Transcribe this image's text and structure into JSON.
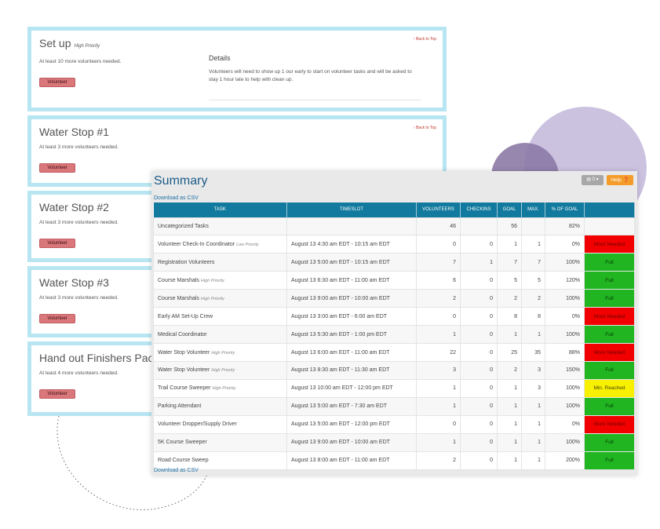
{
  "cards": [
    {
      "title": "Set up",
      "priority": "High Priority",
      "need": "At least 10 more volunteers needed.",
      "button": "Volunteer",
      "back_to_top": "↑ Back to Top",
      "details_heading": "Details",
      "details_text": "Volunteers will need to show up 1 our early to start on volunteer tasks and will be asked to stay 1 hour late to help with clean up."
    },
    {
      "title": "Water Stop #1",
      "priority": "",
      "need": "At least 3 more volunteers needed.",
      "button": "Volunteer",
      "back_to_top": "↑ Back to Top"
    },
    {
      "title": "Water Stop #2",
      "priority": "",
      "need": "At least 3 more volunteers needed.",
      "button": "Volunteer"
    },
    {
      "title": "Water Stop #3",
      "priority": "",
      "need": "At least 3 more volunteers needed.",
      "button": "Volunteer"
    },
    {
      "title": "Hand out Finishers Pack",
      "priority": "",
      "need": "At least 4 more volunteers needed.",
      "button": "Volunteer"
    }
  ],
  "summary": {
    "title": "Summary",
    "download_csv": "Download as CSV",
    "settings_label": "0",
    "help_label": "Help ❓",
    "columns": [
      "TASK",
      "TIMESLOT",
      "VOLUNTEERS",
      "CHECKINS",
      "GOAL",
      "MAX.",
      "% OF GOAL",
      ""
    ],
    "rows": [
      {
        "task": "Uncategorized Tasks",
        "priority": "",
        "timeslot": "",
        "volunteers": "46",
        "checkins": "",
        "goal": "56",
        "max": "",
        "pct": "82%",
        "status": "",
        "status_type": "none"
      },
      {
        "task": "Volunteer Check-In Coordinator",
        "priority": "Low Priority",
        "timeslot": "August 13 4:30 am EDT - 10:15 am EDT",
        "volunteers": "0",
        "checkins": "0",
        "goal": "1",
        "max": "1",
        "pct": "0%",
        "status": "More Needed",
        "status_type": "more"
      },
      {
        "task": "Registration Volunteers",
        "priority": "",
        "timeslot": "August 13 5:00 am EDT - 10:15 am EDT",
        "volunteers": "7",
        "checkins": "1",
        "goal": "7",
        "max": "7",
        "pct": "100%",
        "status": "Full",
        "status_type": "full"
      },
      {
        "task": "Course Marshals",
        "priority": "High Priority",
        "timeslot": "August 13 6:30 am EDT - 11:00 am EDT",
        "volunteers": "6",
        "checkins": "0",
        "goal": "5",
        "max": "5",
        "pct": "120%",
        "status": "Full",
        "status_type": "full"
      },
      {
        "task": "Course Marshals",
        "priority": "High Priority",
        "timeslot": "August 13 9:00 am EDT - 10:00 am EDT",
        "volunteers": "2",
        "checkins": "0",
        "goal": "2",
        "max": "2",
        "pct": "100%",
        "status": "Full",
        "status_type": "full"
      },
      {
        "task": "Early AM Set-Up Crew",
        "priority": "",
        "timeslot": "August 13 3:00 am EDT - 6:00 am EDT",
        "volunteers": "0",
        "checkins": "0",
        "goal": "8",
        "max": "8",
        "pct": "0%",
        "status": "More Needed",
        "status_type": "more"
      },
      {
        "task": "Medical Coordinator",
        "priority": "",
        "timeslot": "August 13 5:30 am EDT - 1:00 pm EDT",
        "volunteers": "1",
        "checkins": "0",
        "goal": "1",
        "max": "1",
        "pct": "100%",
        "status": "Full",
        "status_type": "full"
      },
      {
        "task": "Water Stop Volunteer",
        "priority": "High Priority",
        "timeslot": "August 13 6:00 am EDT - 11:00 am EDT",
        "volunteers": "22",
        "checkins": "0",
        "goal": "25",
        "max": "35",
        "pct": "88%",
        "status": "More Needed",
        "status_type": "more"
      },
      {
        "task": "Water Stop Volunteer",
        "priority": "High Priority",
        "timeslot": "August 13 8:30 am EDT - 11:30 am EDT",
        "volunteers": "3",
        "checkins": "0",
        "goal": "2",
        "max": "3",
        "pct": "150%",
        "status": "Full",
        "status_type": "full"
      },
      {
        "task": "Trail Course Sweeper",
        "priority": "High Priority",
        "timeslot": "August 13 10:00 am EDT - 12:00 pm EDT",
        "volunteers": "1",
        "checkins": "0",
        "goal": "1",
        "max": "3",
        "pct": "100%",
        "status": "Min. Reached",
        "status_type": "min"
      },
      {
        "task": "Parking Attendant",
        "priority": "",
        "timeslot": "August 13 5:00 am EDT - 7:30 am EDT",
        "volunteers": "1",
        "checkins": "0",
        "goal": "1",
        "max": "1",
        "pct": "100%",
        "status": "Full",
        "status_type": "full"
      },
      {
        "task": "Volunteer Dropper/Supply Driver",
        "priority": "",
        "timeslot": "August 13 5:00 am EDT - 12:00 pm EDT",
        "volunteers": "0",
        "checkins": "0",
        "goal": "1",
        "max": "1",
        "pct": "0%",
        "status": "More Needed",
        "status_type": "more"
      },
      {
        "task": "5K Course Sweeper",
        "priority": "",
        "timeslot": "August 13 9:00 am EDT - 10:00 am EDT",
        "volunteers": "1",
        "checkins": "0",
        "goal": "1",
        "max": "1",
        "pct": "100%",
        "status": "Full",
        "status_type": "full"
      },
      {
        "task": "Road Course Sweep",
        "priority": "",
        "timeslot": "August 13 8:00 am EDT - 11:00 am EDT",
        "volunteers": "2",
        "checkins": "0",
        "goal": "1",
        "max": "1",
        "pct": "200%",
        "status": "Full",
        "status_type": "full"
      }
    ]
  },
  "colors": {
    "card_border": "#b7e6f2",
    "header": "#127a9e",
    "more_needed": "#f20000",
    "full": "#21b521",
    "min_reached": "#f7f000",
    "volunteer_button": "#d9777b",
    "help_button": "#f39c2a"
  }
}
